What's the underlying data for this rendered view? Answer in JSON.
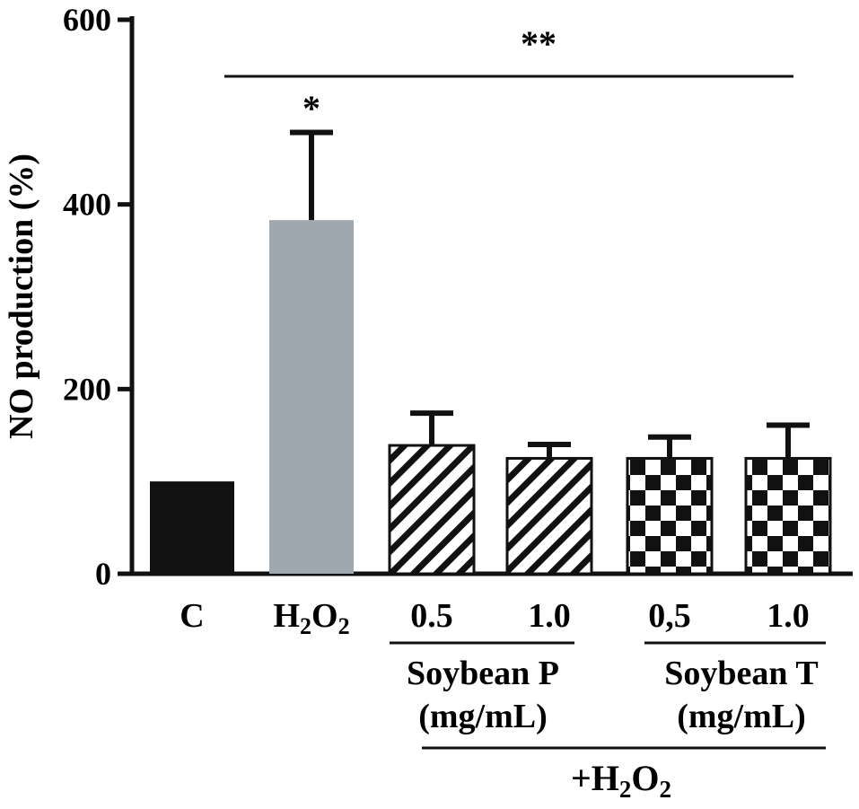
{
  "chart_data": {
    "type": "bar",
    "ylabel": "NO production (%)",
    "ylim": [
      0,
      600
    ],
    "yticks": [
      "0",
      "200",
      "400",
      "600"
    ],
    "y_tick_values": [
      0,
      200,
      400,
      600
    ],
    "categories": [
      {
        "label": "C",
        "sub": "",
        "label_end": ""
      },
      {
        "label": "H",
        "sub": "2",
        "label_end": "O"
      },
      {
        "label": "0.5",
        "sub": "",
        "label_end": ""
      },
      {
        "label": "1.0",
        "sub": "",
        "label_end": ""
      },
      {
        "label": "0,5",
        "sub": "",
        "label_end": ""
      },
      {
        "label": "1.0",
        "sub": "",
        "label_end": ""
      }
    ],
    "h2o2_sub_end": "2",
    "values": [
      100,
      383,
      139,
      125,
      125,
      125
    ],
    "errors": [
      0,
      95,
      35,
      15,
      23,
      36
    ],
    "fills": [
      "solid-black",
      "solid-gray",
      "hatch",
      "hatch",
      "checker",
      "checker"
    ],
    "colors": {
      "black": "#111111",
      "gray": "#9ea8ae",
      "white": "#ffffff"
    },
    "annotations": {
      "h2o2_star": "*",
      "double_star": "**"
    },
    "groups": [
      {
        "label_line1": "Soybean P",
        "label_line2": "(mg/mL)"
      },
      {
        "label_line1": "Soybean T",
        "label_line2": "(mg/mL)"
      }
    ],
    "treatment": {
      "prefix": "+H",
      "sub1": "2",
      "mid": "O",
      "sub2": "2"
    }
  }
}
